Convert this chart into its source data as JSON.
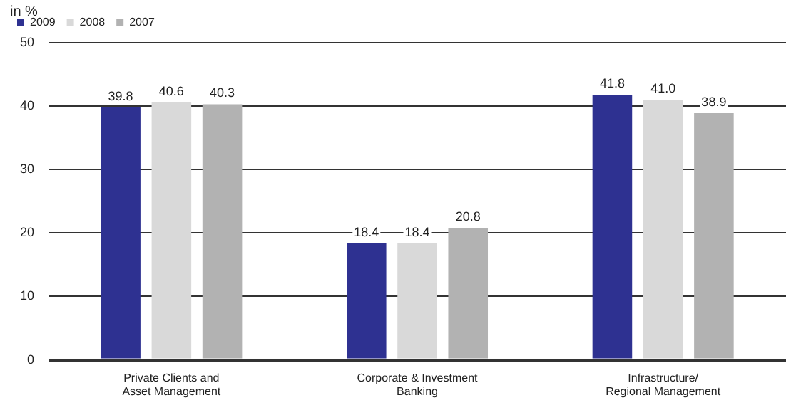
{
  "chart_data": {
    "type": "bar",
    "ylabel": "in %",
    "categories": [
      "Private Clients and\nAsset Management",
      "Corporate & Investment\nBanking",
      "Infrastructure/\nRegional Management"
    ],
    "series": [
      {
        "name": "2009",
        "color": "#2e3191",
        "values": [
          39.8,
          18.4,
          41.8
        ]
      },
      {
        "name": "2008",
        "color": "#d9d9d9",
        "values": [
          40.6,
          18.4,
          41.0
        ]
      },
      {
        "name": "2007",
        "color": "#b2b2b2",
        "values": [
          40.3,
          20.8,
          38.9
        ]
      }
    ],
    "ylim": [
      0,
      50
    ],
    "yticks": [
      0,
      10,
      20,
      30,
      40,
      50
    ],
    "grid": "y",
    "legend": "top left",
    "value_labels": [
      [
        "39.8",
        "18.4",
        "41.8"
      ],
      [
        "40.6",
        "18.4",
        "41.0"
      ],
      [
        "40.3",
        "20.8",
        "38.9"
      ]
    ]
  }
}
